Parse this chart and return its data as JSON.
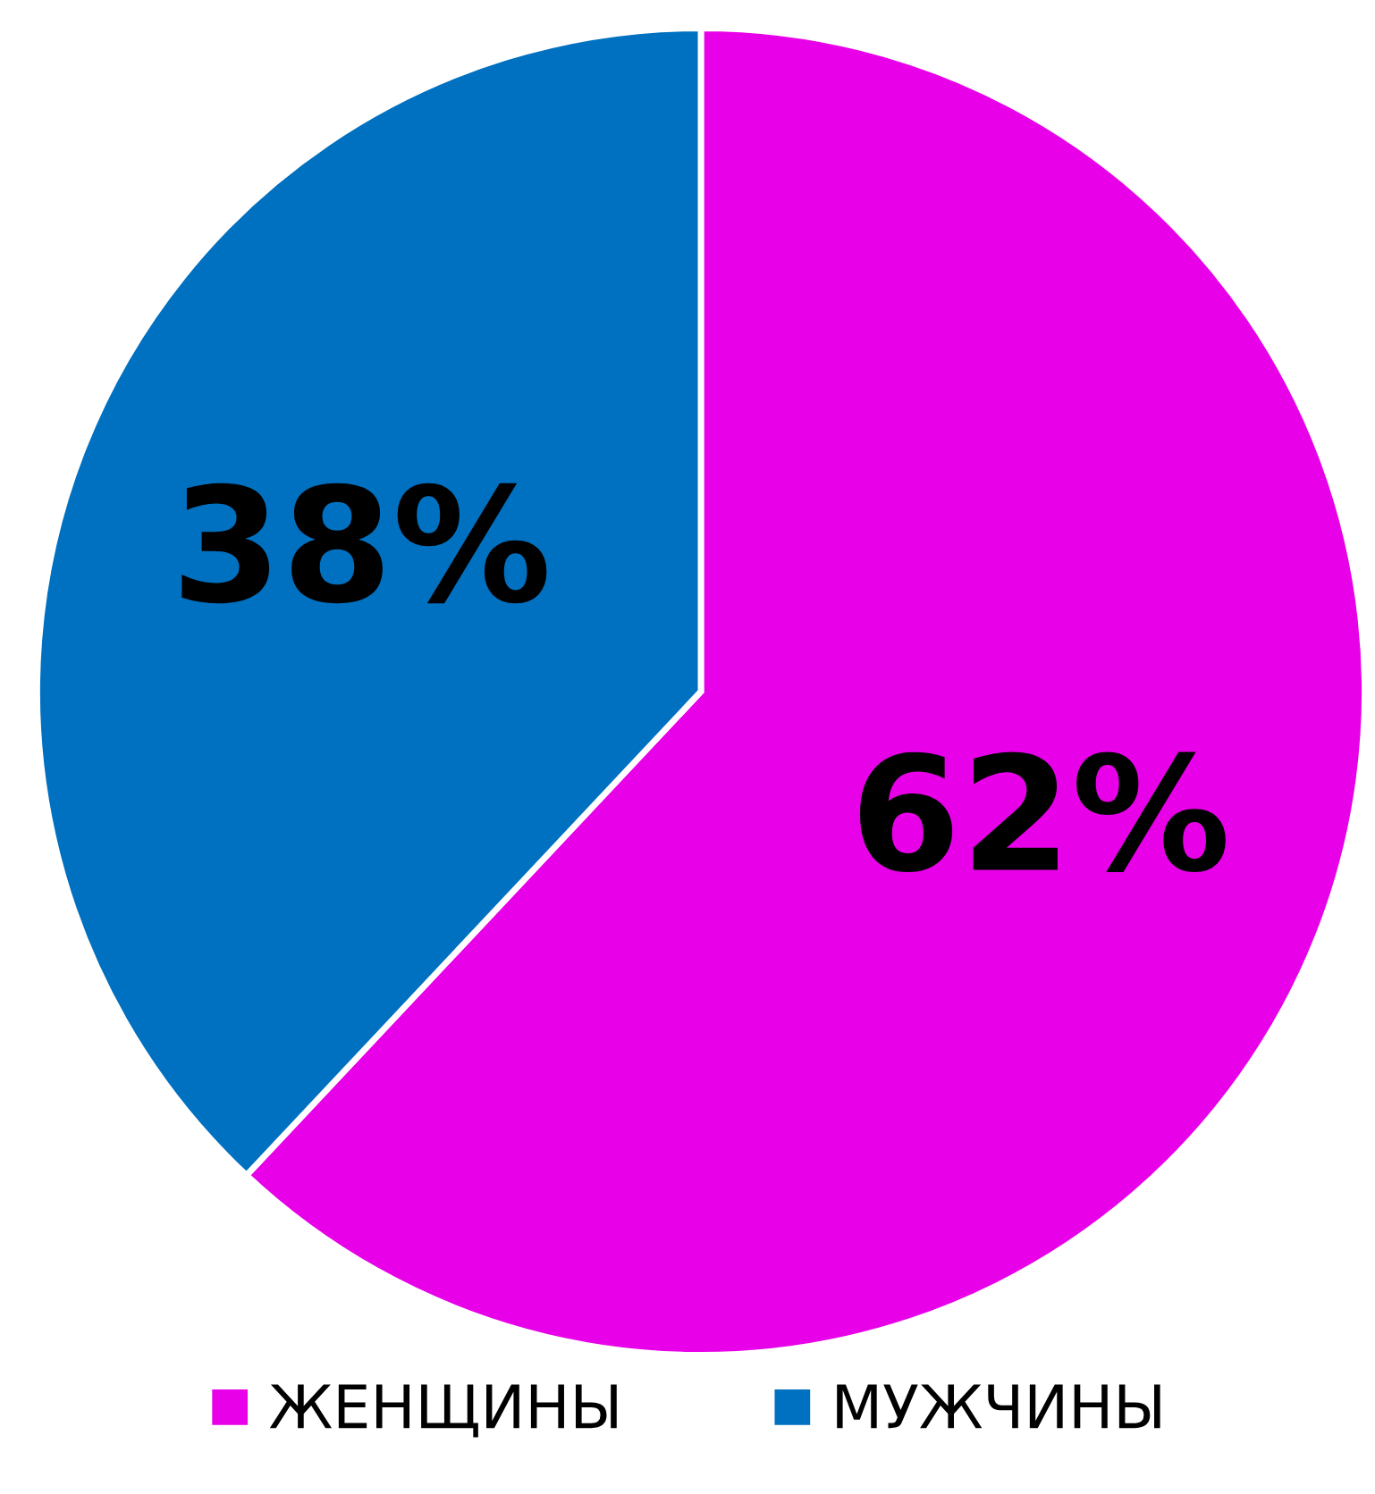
{
  "chart_data": {
    "type": "pie",
    "categories": [
      "ЖЕНЩИНЫ",
      "МУЖЧИНЫ"
    ],
    "values": [
      62,
      38
    ],
    "colors": [
      "#e800e8",
      "#0070c0"
    ],
    "value_labels": [
      "62%",
      "38%"
    ],
    "legend": "bottom"
  }
}
